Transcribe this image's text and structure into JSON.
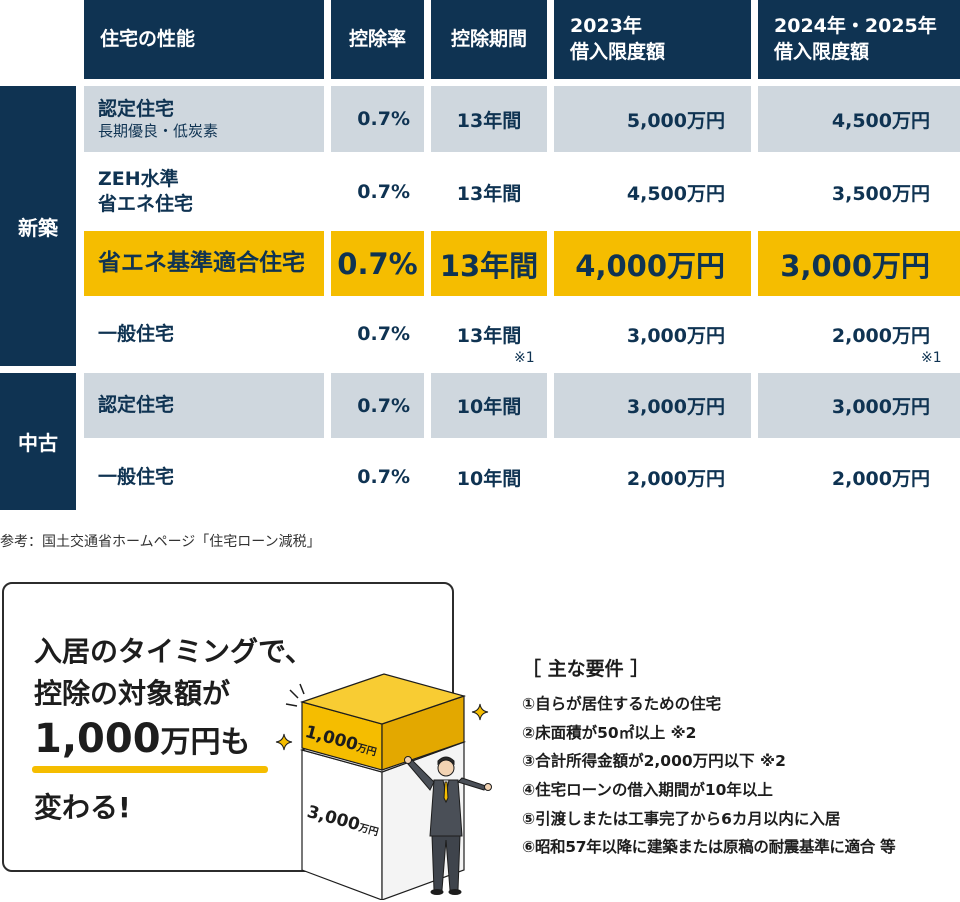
{
  "table": {
    "headers": {
      "performance": "住宅の性能",
      "rate": "控除率",
      "period": "控除期間",
      "limit_2023": [
        "2023年",
        "借入限度額"
      ],
      "limit_2024": [
        "2024年・2025年",
        "借入限度額"
      ]
    },
    "groups": {
      "new": "新築",
      "used": "中古"
    },
    "rows": [
      {
        "name": "認定住宅",
        "sub": "長期優良・低炭素",
        "rate": "0.7%",
        "period": "13年間",
        "limit_2023": "5,000万円",
        "limit_2024": "4,500万円"
      },
      {
        "name": "ZEH水準",
        "sub": "省エネ住宅",
        "rate": "0.7%",
        "period": "13年間",
        "limit_2023": "4,500万円",
        "limit_2024": "3,500万円"
      },
      {
        "name": "省エネ基準適合住宅",
        "rate": "0.7%",
        "period": "13年間",
        "limit_2023": "4,000万円",
        "limit_2024": "3,000万円"
      },
      {
        "name": "一般住宅",
        "rate": "0.7%",
        "period": "13年間",
        "limit_2023": "3,000万円",
        "limit_2024": "2,000万円"
      },
      {
        "name": "認定住宅",
        "rate": "0.7%",
        "period": "10年間",
        "limit_2023": "3,000万円",
        "limit_2024": "3,000万円"
      },
      {
        "name": "一般住宅",
        "rate": "0.7%",
        "period": "10年間",
        "limit_2023": "2,000万円",
        "limit_2024": "2,000万円"
      }
    ],
    "note_mark": "※1"
  },
  "source": "参考：国土交通省ホームページ「住宅ローン減税」",
  "callout": {
    "line1": "入居のタイミングで、",
    "line2": "控除の対象額が",
    "amount": "1,000",
    "amount_unit": "万円も",
    "line4": "変わる!"
  },
  "illustration": {
    "top_box_number": "1,000",
    "top_box_unit": "万円",
    "bottom_box_number": "3,000",
    "bottom_box_unit": "万円"
  },
  "requirements": {
    "title": "［ 主な要件 ］",
    "items": [
      "①自らが居住するための住宅",
      "②床面積が50㎡以上 ※2",
      "③合計所得金額が2,000万円以下 ※2",
      "④住宅ローンの借入期間が10年以上",
      "⑤引渡しまたは工事完了から6カ月以内に入居",
      "⑥昭和57年以降に建築または原稿の耐震基準に適合 等"
    ]
  }
}
